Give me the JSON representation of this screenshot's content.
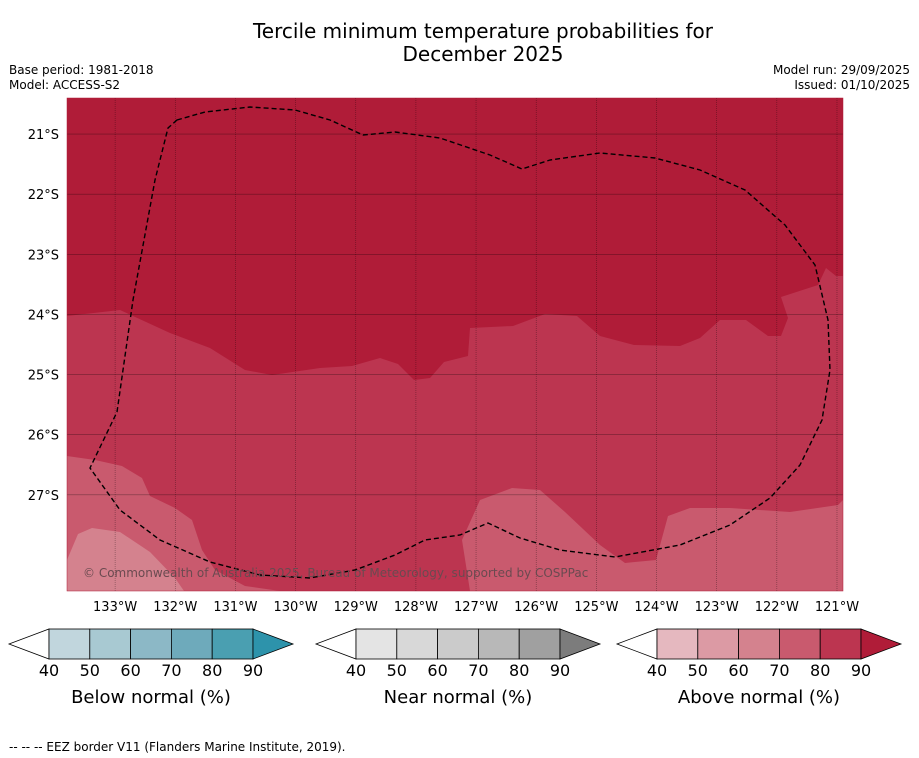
{
  "header": {
    "title_line1": "Tercile minimum temperature probabilities for",
    "title_line2": "December 2025",
    "base_period": "Base period: 1981-2018",
    "model": "Model: ACCESS-S2",
    "model_run": "Model run: 29/09/2025",
    "issued": "Issued: 01/10/2025"
  },
  "map": {
    "copyright": "© Commonwealth of Australia 2025, Bureau of Meteorology, supported by COSPPac",
    "eez_color": "#000000"
  },
  "footnote": "--  --  -- EEZ border V11 (Flanders Marine Institute, 2019).",
  "colors": {
    "above_90": "#b01c38",
    "above_80": "#bc3550",
    "above_70": "#c95a6e",
    "above_60": "#d4828e",
    "above_50": "#dc9aa4",
    "above_40": "#e5b8bf"
  },
  "chart_data": {
    "type": "heatmap",
    "title": "Tercile minimum temperature probabilities for December 2025",
    "x_ticks": [
      "133°W",
      "132°W",
      "131°W",
      "130°W",
      "129°W",
      "128°W",
      "127°W",
      "126°W",
      "125°W",
      "124°W",
      "123°W",
      "122°W",
      "121°W"
    ],
    "x_values": [
      -133,
      -132,
      -131,
      -130,
      -129,
      -128,
      -127,
      -126,
      -125,
      -124,
      -123,
      -122,
      -121
    ],
    "y_ticks": [
      "21°S",
      "22°S",
      "23°S",
      "24°S",
      "25°S",
      "26°S",
      "27°S"
    ],
    "y_values": [
      -21,
      -22,
      -23,
      -24,
      -25,
      -26,
      -27
    ],
    "xlim": [
      -133.8,
      -120.9
    ],
    "ylim": [
      -28.6,
      -20.4
    ],
    "categories_shown": "Above normal (%)",
    "regions": [
      {
        "name": "north",
        "category": "Above normal",
        "probability_range": "80-90"
      },
      {
        "name": "central-south",
        "category": "Above normal",
        "probability_range": "70-80"
      },
      {
        "name": "southwest-edge",
        "category": "Above normal",
        "probability_range": "60-70"
      },
      {
        "name": "southwest-corner",
        "category": "Above normal",
        "probability_range": "50-60"
      }
    ],
    "legends": [
      {
        "label": "Below normal (%)",
        "ticks": [
          "40",
          "50",
          "60",
          "70",
          "80",
          "90"
        ],
        "colors": [
          "#c1d6dd",
          "#a8c9d2",
          "#8cb8c6",
          "#6eaabb",
          "#4a9fb1"
        ],
        "extend_color": "#2d93ab"
      },
      {
        "label": "Near normal (%)",
        "ticks": [
          "40",
          "50",
          "60",
          "70",
          "80",
          "90"
        ],
        "colors": [
          "#e4e4e4",
          "#d8d8d8",
          "#cbcbcb",
          "#b8b8b8",
          "#a0a0a0"
        ],
        "extend_color": "#7c7c7c"
      },
      {
        "label": "Above normal (%)",
        "ticks": [
          "40",
          "50",
          "60",
          "70",
          "80",
          "90"
        ],
        "colors": [
          "#e5b8bf",
          "#dc9aa4",
          "#d4828e",
          "#c95a6e",
          "#bc3550"
        ],
        "extend_color": "#b01c38"
      }
    ]
  }
}
